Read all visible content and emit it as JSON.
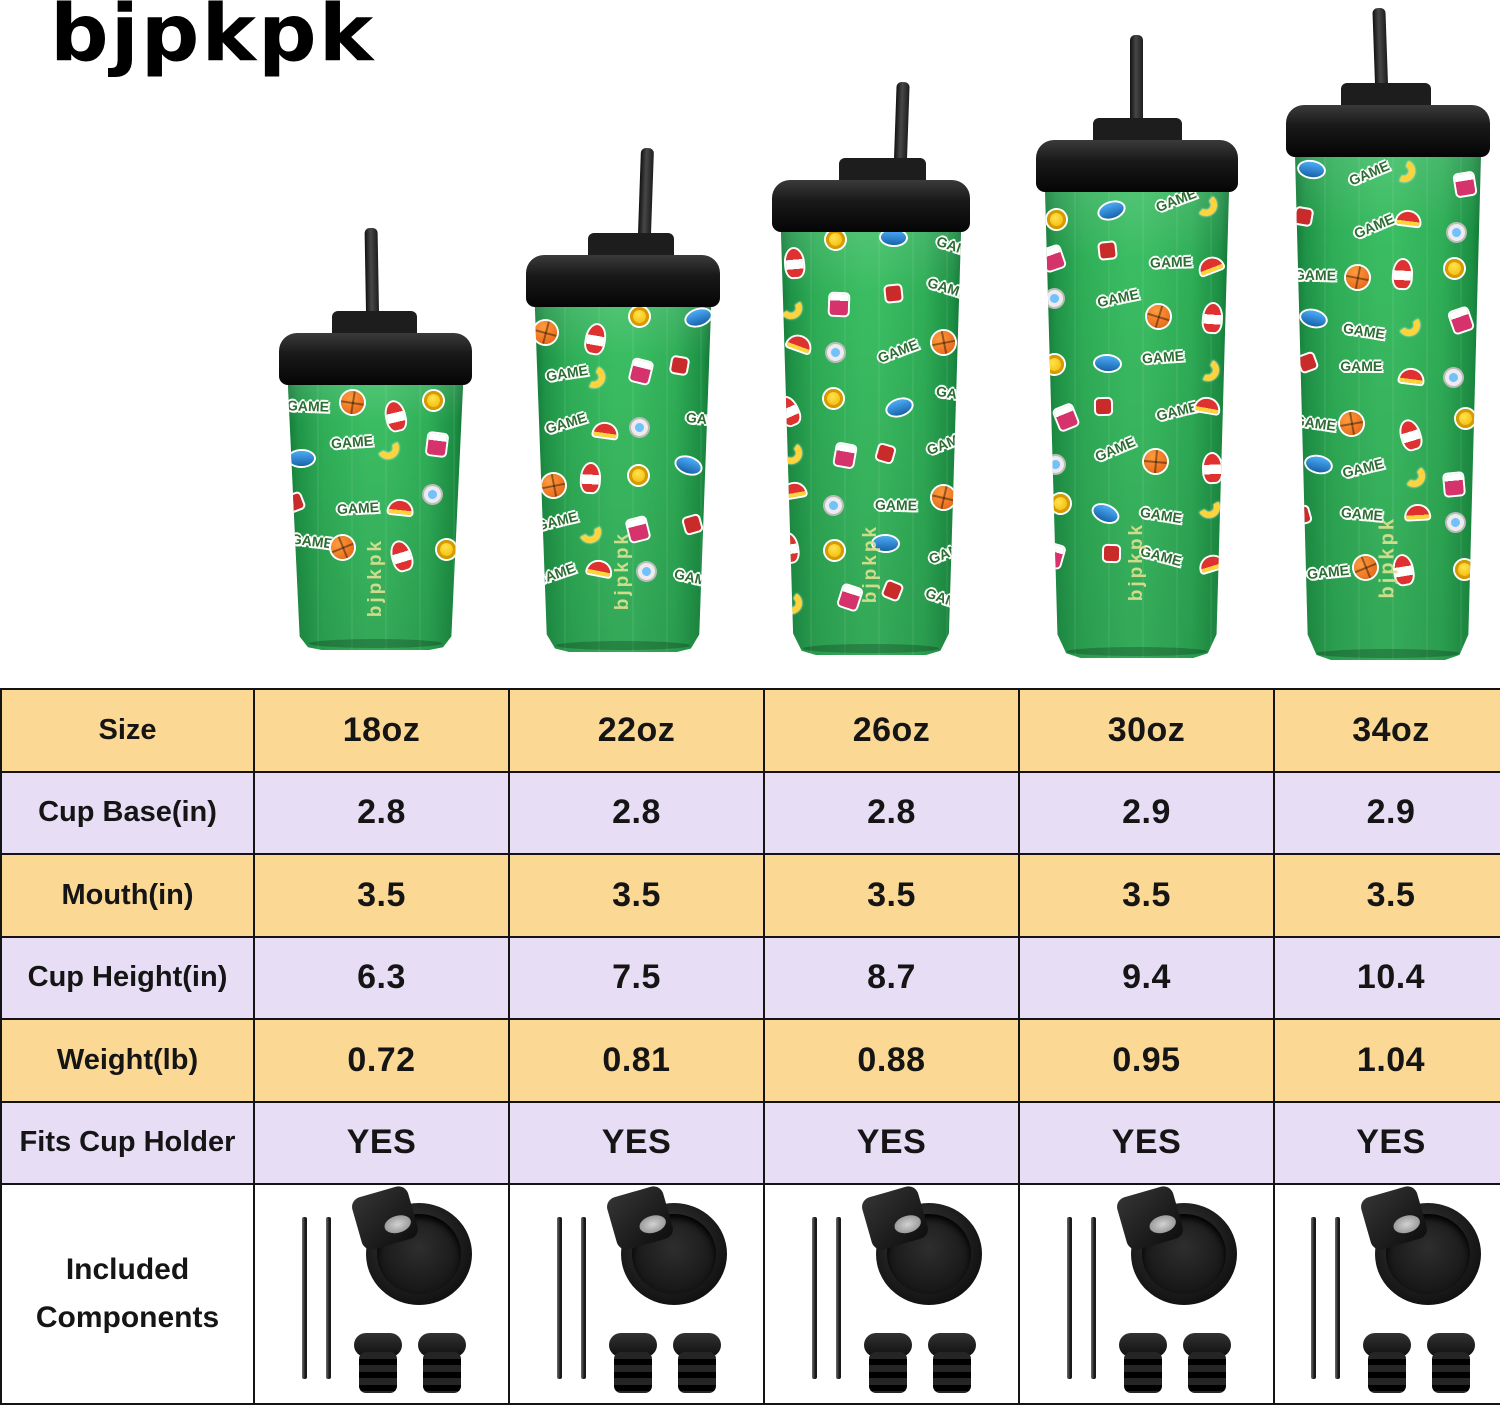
{
  "brand": {
    "logo": "bjpkpk"
  },
  "lineup": {
    "cups": [
      {
        "size": "18oz"
      },
      {
        "size": "22oz"
      },
      {
        "size": "26oz"
      },
      {
        "size": "30oz"
      },
      {
        "size": "34oz"
      }
    ],
    "cup_brand_text": "bjpkpk",
    "sticker_word": "GAME",
    "sticker_icons": [
      "game-word-sticker",
      "rocket-sticker",
      "basketball-sticker",
      "smiley-coin-sticker",
      "banana-sticker",
      "fish-sticker",
      "mug-sticker",
      "cap-sticker",
      "star-badge-sticker",
      "magnifier-sticker"
    ],
    "colors": {
      "cup_green": "#2FAE57",
      "cup_green_dark": "#0E6E31",
      "lid_black": "#1B1B1B",
      "straw_black": "#2E2E2E",
      "cup_brand_gold": "#D9DF8F"
    }
  },
  "table": {
    "colors": {
      "yellow_row": "#FBD893",
      "purple_row": "#E7DEF5",
      "border": "#141414"
    },
    "rows": [
      {
        "label": "Size",
        "values": [
          "18oz",
          "22oz",
          "26oz",
          "30oz",
          "34oz"
        ]
      },
      {
        "label": "Cup Base(in)",
        "values": [
          "2.8",
          "2.8",
          "2.8",
          "2.9",
          "2.9"
        ]
      },
      {
        "label": "Mouth(in)",
        "values": [
          "3.5",
          "3.5",
          "3.5",
          "3.5",
          "3.5"
        ]
      },
      {
        "label": "Cup Height(in)",
        "values": [
          "6.3",
          "7.5",
          "8.7",
          "9.4",
          "10.4"
        ]
      },
      {
        "label": "Weight(lb)",
        "values": [
          "0.72",
          "0.81",
          "0.88",
          "0.95",
          "1.04"
        ]
      },
      {
        "label": "Fits Cup Holder",
        "values": [
          "YES",
          "YES",
          "YES",
          "YES",
          "YES"
        ]
      }
    ],
    "components": {
      "label_line1": "Included",
      "label_line2": "Components",
      "items": [
        "metal-straws",
        "flip-top-lid",
        "rubber-stoppers"
      ]
    }
  }
}
